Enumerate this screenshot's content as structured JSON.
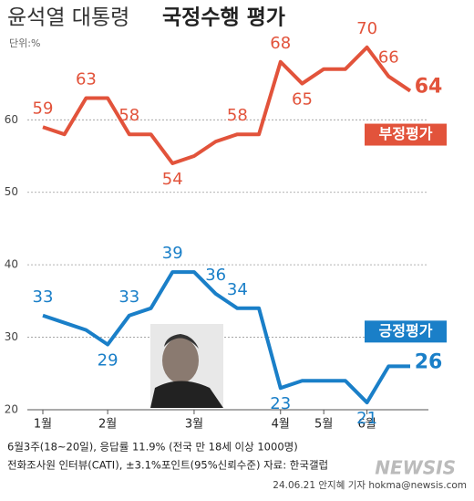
{
  "chart_data": {
    "type": "line",
    "title": "윤석열 대통령",
    "title_bold": "국정수행 평가",
    "unit": "단위:%",
    "categories": [
      "1월",
      null,
      null,
      "2월",
      null,
      null,
      null,
      "3월",
      null,
      null,
      null,
      "4월",
      null,
      "5월",
      null,
      "6월",
      null,
      null
    ],
    "series": [
      {
        "name": "부정평가",
        "color": "#e2533b",
        "values": [
          59,
          58,
          63,
          63,
          58,
          58,
          54,
          55,
          57,
          58,
          58,
          68,
          65,
          67,
          67,
          70,
          66,
          64
        ],
        "value_labels": [
          "59",
          null,
          "63",
          null,
          "58",
          null,
          "54",
          null,
          null,
          "58",
          null,
          "68",
          "65",
          null,
          null,
          "70",
          "66",
          "64"
        ]
      },
      {
        "name": "긍정평가",
        "color": "#1a7fc8",
        "values": [
          33,
          32,
          31,
          29,
          33,
          34,
          39,
          39,
          36,
          34,
          34,
          23,
          24,
          24,
          24,
          21,
          26,
          26
        ],
        "value_labels": [
          "33",
          null,
          null,
          "29",
          "33",
          null,
          "39",
          null,
          "36",
          "34",
          null,
          "23",
          null,
          null,
          null,
          "21",
          null,
          "26"
        ]
      }
    ],
    "ylim": [
      20,
      72
    ],
    "yticks": [
      20,
      30,
      40,
      50,
      60
    ],
    "grid": true,
    "notes": [
      "6월3주(18~20일), 응답률 11.9% (전국 만 18세 이상 1000명)",
      "전화조사원 인터뷰(CATI), ±3.1%포인트(95%신뢰수준) 자료: 한국갤럽"
    ],
    "credit": "24.06.21 안지혜 기자 hokma@newsis.com",
    "logo": "NEWSIS"
  }
}
